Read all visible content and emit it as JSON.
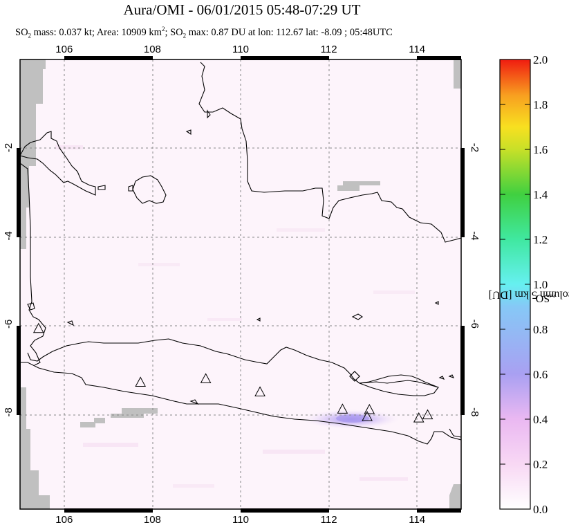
{
  "header": {
    "title": "Aura/OMI - 06/01/2015 05:48-07:29 UT",
    "subtitle_prefix": "SO",
    "subtitle_sub2": "2",
    "subtitle_mass": " mass: 0.037 kt; Area: 10909 km",
    "subtitle_sup2": "2",
    "subtitle_max_prefix": "; SO",
    "subtitle_max_sub": "2",
    "subtitle_max": " max: 0.87 DU at lon: 112.67 lat: -8.09 ; 05:48UTC"
  },
  "map": {
    "lon_range": [
      105.0,
      115.0
    ],
    "lat_range": [
      -10.2,
      0.0
    ],
    "lon_ticks": [
      106,
      108,
      110,
      112,
      114
    ],
    "lat_ticks": [
      -2,
      -4,
      -6,
      -8
    ],
    "lon_tick_labels": [
      "106",
      "108",
      "110",
      "112",
      "114"
    ],
    "lat_tick_labels": [
      "-2",
      "-4",
      "-6",
      "-8"
    ],
    "volcanoes": [
      {
        "lon": 105.42,
        "lat": -6.1
      },
      {
        "lon": 107.73,
        "lat": -7.32
      },
      {
        "lon": 109.21,
        "lat": -7.24
      },
      {
        "lon": 110.44,
        "lat": -7.54
      },
      {
        "lon": 112.31,
        "lat": -7.93
      },
      {
        "lon": 112.92,
        "lat": -7.94
      },
      {
        "lon": 112.87,
        "lat": -8.1
      },
      {
        "lon": 114.04,
        "lat": -8.13
      },
      {
        "lon": 114.24,
        "lat": -8.06
      }
    ],
    "so2_max_location": {
      "lon": 112.67,
      "lat": -8.09,
      "value_du": 0.87
    },
    "colors": {
      "land_outline": "#000000",
      "missing_data": "#c0c0c0",
      "so2_low": "#fdeffa",
      "so2_mid": "#9f8cf0",
      "grid": "#888888"
    }
  },
  "colorbar": {
    "title_prefix": "SO",
    "title_sub": "2",
    "title_rest": " PCA column 5 km [DU]",
    "min": 0.0,
    "max": 2.0,
    "tick_values": [
      0.0,
      0.2,
      0.4,
      0.6,
      0.8,
      1.0,
      1.2,
      1.4,
      1.6,
      1.8,
      2.0
    ],
    "tick_labels": [
      "0.0",
      "0.2",
      "0.4",
      "0.6",
      "0.8",
      "1.0",
      "1.2",
      "1.4",
      "1.6",
      "1.8",
      "2.0"
    ],
    "gradient_colors": [
      "#ffffff",
      "#f4c6f0",
      "#c8a0f0",
      "#8a8cf0",
      "#60d8f8",
      "#40e8c0",
      "#3ed84a",
      "#a8e030",
      "#f8e020",
      "#f88a20",
      "#f02010"
    ]
  }
}
